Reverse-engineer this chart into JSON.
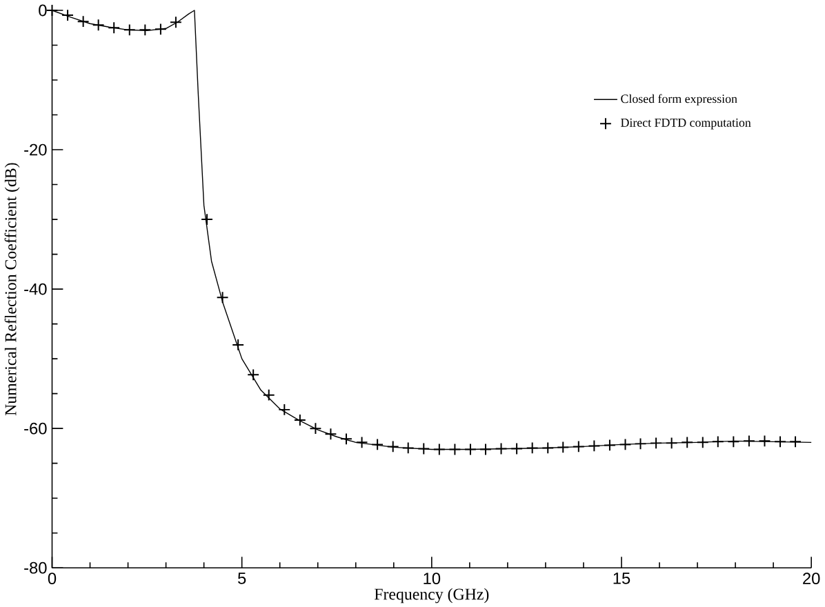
{
  "chart_data": {
    "type": "line",
    "xlabel": "Frequency (GHz)",
    "ylabel": "Numerical Reflection Coefficient (dB)",
    "xlim": [
      0,
      20
    ],
    "ylim": [
      -80,
      0
    ],
    "xticks": [
      0,
      5,
      10,
      15,
      20
    ],
    "yticks": [
      0,
      -20,
      -40,
      -60,
      -80
    ],
    "grid": false,
    "legend": "top right",
    "series": [
      {
        "name": "Closed form expression",
        "type": "line",
        "color": "#000000",
        "marker": "none",
        "line_style": "solid",
        "x": [
          0,
          0.5,
          1,
          1.5,
          2,
          2.5,
          3,
          3.3,
          3.6,
          3.75,
          3.85,
          4.0,
          4.2,
          4.5,
          5,
          5.5,
          6,
          6.5,
          7,
          7.5,
          8,
          9,
          10,
          11,
          12,
          13,
          14,
          15,
          16,
          17,
          18,
          19,
          20
        ],
        "values": [
          0,
          -1,
          -1.9,
          -2.4,
          -2.8,
          -2.9,
          -2.6,
          -1.7,
          -0.5,
          0,
          -12,
          -28,
          -36,
          -42,
          -50,
          -54.5,
          -57.2,
          -58.8,
          -60.2,
          -61.2,
          -62,
          -62.7,
          -63,
          -63,
          -62.9,
          -62.8,
          -62.6,
          -62.3,
          -62.1,
          -62,
          -61.8,
          -61.9,
          -62
        ]
      },
      {
        "name": "Direct FDTD computation",
        "type": "scatter",
        "color": "#000000",
        "marker": "cross",
        "x": [
          0,
          0.41,
          0.82,
          1.22,
          1.63,
          2.04,
          2.45,
          2.86,
          3.26,
          3.67,
          4.08,
          4.49,
          4.9,
          5.3,
          5.71,
          6.12,
          6.53,
          6.94,
          7.34,
          7.75,
          8.16,
          8.57,
          8.98,
          9.38,
          9.79,
          10.2,
          10.61,
          11.02,
          11.42,
          11.83,
          12.24,
          12.65,
          13.06,
          13.46,
          13.87,
          14.28,
          14.69,
          15.1,
          15.5,
          15.91,
          16.32,
          16.73,
          17.14,
          17.54,
          17.95,
          18.36,
          18.77,
          19.18,
          19.58
        ],
        "values": [
          0,
          -0.7,
          -1.6,
          -2.1,
          -2.5,
          -2.8,
          -2.8,
          -2.7,
          -1.7,
          null,
          -30,
          -41.2,
          -48,
          -52.3,
          -55.2,
          -57.3,
          -58.8,
          -60,
          -60.8,
          -61.5,
          -62,
          -62.3,
          -62.6,
          -62.8,
          -62.9,
          -63,
          -63,
          -63,
          -63,
          -62.9,
          -62.9,
          -62.8,
          -62.8,
          -62.7,
          -62.6,
          -62.5,
          -62.4,
          -62.3,
          -62.2,
          -62.1,
          -62.1,
          -62,
          -62,
          -61.9,
          -61.9,
          -61.8,
          -61.8,
          -61.9,
          -61.9
        ]
      }
    ]
  }
}
